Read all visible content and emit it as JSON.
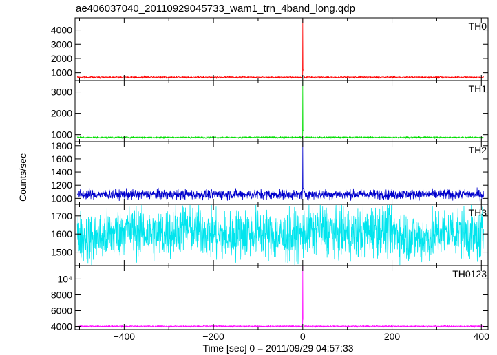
{
  "title": "ae406037040_20110929045733_wam1_trn_4band_long.qdp",
  "chart_data": {
    "type": "line",
    "title": "ae406037040_20110929045733_wam1_trn_4band_long.qdp",
    "xlabel": "Time [sec] 0 = 2011/09/29 04:57:33",
    "ylabel": "Counts/sec",
    "xlim": [
      -510,
      415
    ],
    "x_ticks": [
      "−400",
      "−200",
      "0",
      "200",
      "400"
    ],
    "x_tick_values": [
      -400,
      -200,
      0,
      200,
      400
    ],
    "panels": [
      {
        "name": "TH0",
        "color": "#ff0000",
        "ylim": [
          500,
          4800
        ],
        "y_ticks": [
          "1000",
          "2000",
          "3000",
          "4000"
        ],
        "y_tick_values": [
          1000,
          2000,
          3000,
          4000
        ],
        "baseline": 680,
        "noise": 25,
        "peak_x": 0,
        "peak_y": 4800,
        "summary": [
          {
            "x": -500,
            "y": 680
          },
          {
            "x": -1,
            "y": 680
          },
          {
            "x": 0,
            "y": 4800
          },
          {
            "x": 2,
            "y": 800
          },
          {
            "x": 400,
            "y": 680
          }
        ]
      },
      {
        "name": "TH1",
        "color": "#00dd00",
        "ylim": [
          700,
          3500
        ],
        "y_ticks": [
          "1000",
          "2000",
          "3000"
        ],
        "y_tick_values": [
          1000,
          2000,
          3000
        ],
        "baseline": 870,
        "noise": 18,
        "peak_x": 0,
        "peak_y": 3500,
        "summary": [
          {
            "x": -500,
            "y": 870
          },
          {
            "x": -1,
            "y": 870
          },
          {
            "x": 0,
            "y": 3500
          },
          {
            "x": 2,
            "y": 950
          },
          {
            "x": 400,
            "y": 870
          }
        ]
      },
      {
        "name": "TH2",
        "color": "#0000cc",
        "ylim": [
          920,
          1850
        ],
        "y_ticks": [
          "1000",
          "1200",
          "1400",
          "1600",
          "1800"
        ],
        "y_tick_values": [
          1000,
          1200,
          1400,
          1600,
          1800
        ],
        "baseline": 1060,
        "noise": 38,
        "peak_x": 0,
        "peak_y": 1850,
        "summary": [
          {
            "x": -500,
            "y": 1060
          },
          {
            "x": -1,
            "y": 1060
          },
          {
            "x": 0,
            "y": 1850
          },
          {
            "x": 2,
            "y": 1100
          },
          {
            "x": 400,
            "y": 1060
          }
        ]
      },
      {
        "name": "TH3",
        "color": "#00e5ee",
        "ylim": [
          1430,
          1760
        ],
        "y_ticks": [
          "1500",
          "1600",
          "1700"
        ],
        "y_tick_values": [
          1500,
          1600,
          1700
        ],
        "baseline": 1605,
        "noise": 70,
        "peak_x": null,
        "peak_y": null,
        "summary": [
          {
            "x": -500,
            "y": 1605
          },
          {
            "x": 0,
            "y": 1605
          },
          {
            "x": 400,
            "y": 1605
          }
        ]
      },
      {
        "name": "TH0123",
        "color": "#ff00ff",
        "ylim": [
          3700,
          11600
        ],
        "y_ticks": [
          "4000",
          "6000",
          "8000",
          "10⁴"
        ],
        "y_tick_values": [
          4000,
          6000,
          8000,
          10000
        ],
        "baseline": 4020,
        "noise": 40,
        "peak_x": 0,
        "peak_y": 11600,
        "summary": [
          {
            "x": -500,
            "y": 4020
          },
          {
            "x": -1,
            "y": 4020
          },
          {
            "x": 0,
            "y": 11600
          },
          {
            "x": 2,
            "y": 4300
          },
          {
            "x": 400,
            "y": 4020
          }
        ]
      }
    ],
    "grid": false,
    "legend": "panel labels top-right"
  }
}
